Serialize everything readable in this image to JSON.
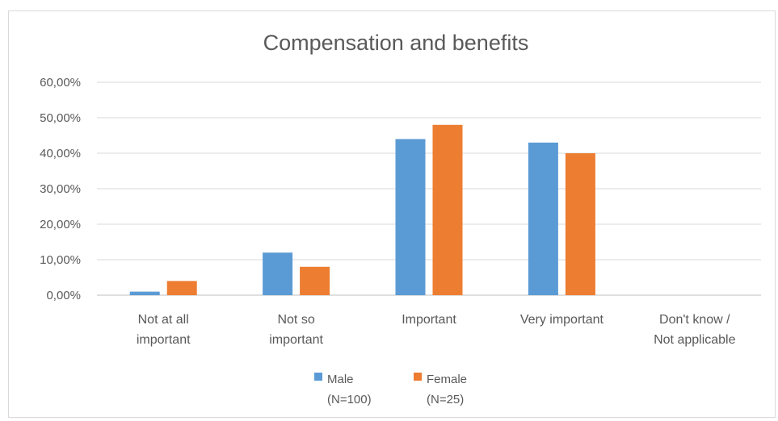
{
  "chart_data": {
    "type": "bar",
    "title": "Compensation and benefits",
    "categories": [
      [
        "Not at all",
        "important"
      ],
      [
        "Not so",
        "important"
      ],
      [
        "Important"
      ],
      [
        "Very important"
      ],
      [
        "Don't know /",
        "Not applicable"
      ]
    ],
    "series": [
      {
        "name": [
          "Male",
          "(N=100)"
        ],
        "color": "#5b9bd5",
        "values": [
          1,
          12,
          44,
          43,
          0
        ]
      },
      {
        "name": [
          "Female",
          "(N=25)"
        ],
        "color": "#ed7d31",
        "values": [
          4,
          8,
          48,
          40,
          0
        ]
      }
    ],
    "yticks": [
      "0,00%",
      "10,00%",
      "20,00%",
      "30,00%",
      "40,00%",
      "50,00%",
      "60,00%"
    ],
    "ylim": [
      0,
      60
    ],
    "grid": true,
    "legend_position": "bottom"
  }
}
